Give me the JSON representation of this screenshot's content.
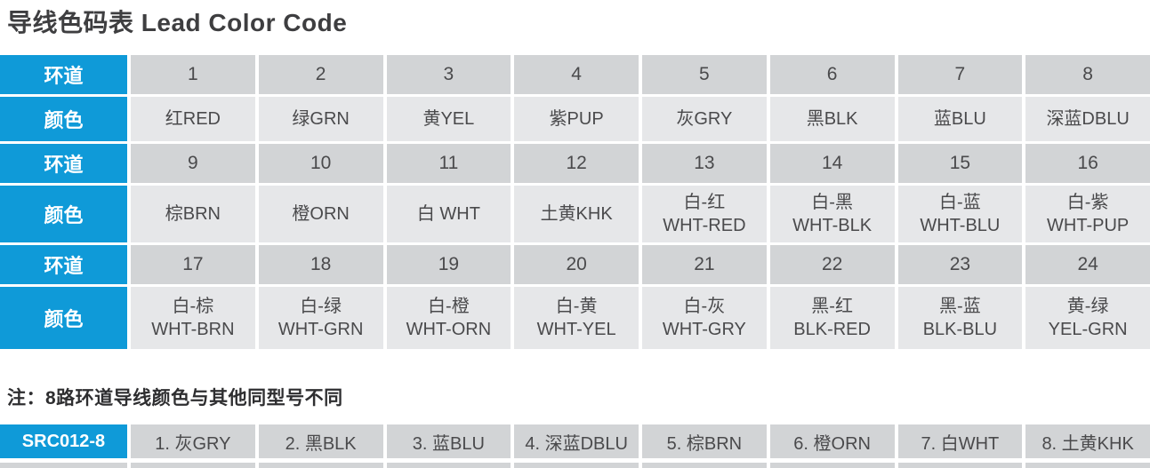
{
  "title": "导线色码表 Lead Color Code",
  "main_table": {
    "header_label_channel": "环道",
    "header_label_color": "颜色",
    "groups": [
      {
        "channels": [
          "1",
          "2",
          "3",
          "4",
          "5",
          "6",
          "7",
          "8"
        ],
        "colors": [
          "红RED",
          "绿GRN",
          "黄YEL",
          "紫PUP",
          "灰GRY",
          "黑BLK",
          "蓝BLU",
          "深蓝DBLU"
        ]
      },
      {
        "channels": [
          "9",
          "10",
          "11",
          "12",
          "13",
          "14",
          "15",
          "16"
        ],
        "colors": [
          "棕BRN",
          "橙ORN",
          "白 WHT",
          "土黄KHK",
          "白-红\nWHT-RED",
          "白-黑\nWHT-BLK",
          "白-蓝\nWHT-BLU",
          "白-紫\nWHT-PUP"
        ]
      },
      {
        "channels": [
          "17",
          "18",
          "19",
          "20",
          "21",
          "22",
          "23",
          "24"
        ],
        "colors": [
          "白-棕\nWHT-BRN",
          "白-绿\nWHT-GRN",
          "白-橙\nWHT-ORN",
          "白-黄\nWHT-YEL",
          "白-灰\nWHT-GRY",
          "黑-红\nBLK-RED",
          "黑-蓝\nBLK-BLU",
          "黄-绿\nYEL-GRN"
        ]
      }
    ]
  },
  "note": "注：8路环道导线颜色与其他同型号不同",
  "bottom_table": {
    "model": "SRC012-8",
    "cells": [
      "1. 灰GRY",
      "2. 黑BLK",
      "3. 蓝BLU",
      "4. 深蓝DBLU",
      "5. 棕BRN",
      "6. 橙ORN",
      "7. 白WHT",
      "8. 土黄KHK"
    ]
  },
  "colors": {
    "accent_blue": "#0f9ad8",
    "row_dark_gray": "#d2d4d6",
    "row_light_gray": "#e6e7e9",
    "text_dark": "#4a4a4c"
  }
}
